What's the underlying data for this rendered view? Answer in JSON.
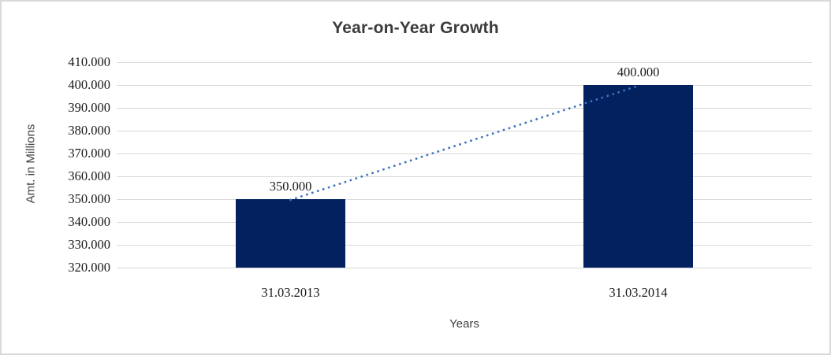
{
  "chart_data": {
    "type": "bar",
    "title": "Year-on-Year Growth",
    "xlabel": "Years",
    "ylabel": "Amt. in Millions",
    "categories": [
      "31.03.2013",
      "31.03.2014"
    ],
    "series": [
      {
        "name": "Amt. in Millions",
        "values": [
          350000,
          400000
        ]
      }
    ],
    "data_labels": [
      "350.000",
      "400.000"
    ],
    "ylim": [
      320000,
      410000
    ],
    "ytick_step": 10000,
    "ytick_labels": [
      "410.000",
      "400.000",
      "390.000",
      "380.000",
      "370.000",
      "360.000",
      "350.000",
      "340.000",
      "330.000",
      "320.000"
    ],
    "grid": true,
    "legend": "none",
    "trendline": {
      "type": "linear",
      "style": "dotted",
      "from_point": "31.03.2013",
      "to_point": "31.03.2014"
    },
    "colors": {
      "bar": "#02215E",
      "trendline": "#3F72C1",
      "gridline": "#D9D9D9",
      "border": "#D9D9D9",
      "title_text": "#3B3B3B",
      "axis_title_text": "#3F3F3F",
      "tick_text": "#1A1A1A",
      "background": "#FFFFFF"
    }
  }
}
